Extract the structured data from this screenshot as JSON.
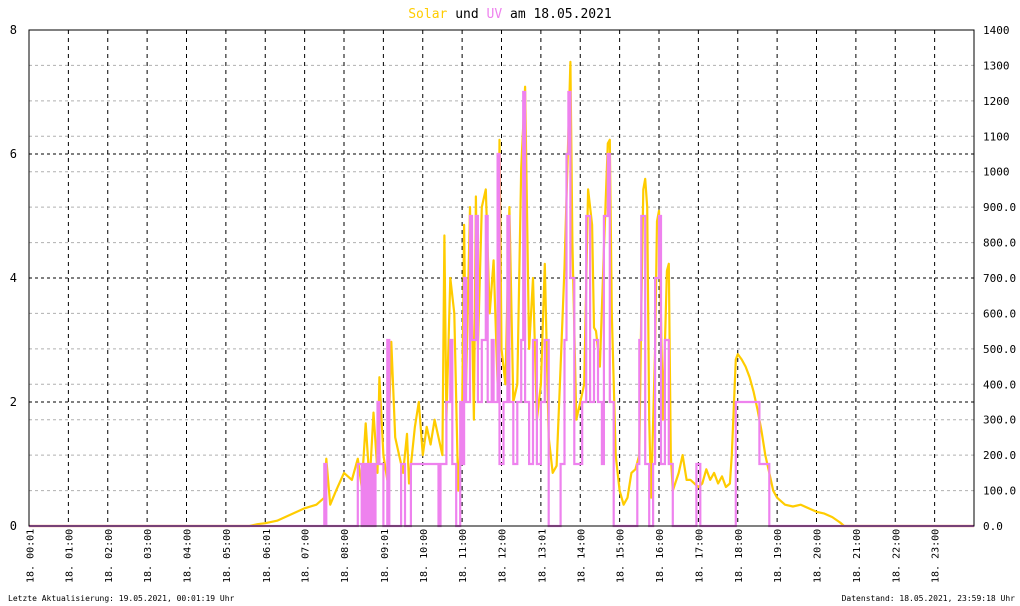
{
  "title": {
    "word1": "Solar",
    "word2": " und ",
    "word3": "UV",
    "word4": " am 18.05.2021",
    "color_solar": "#ffcc00",
    "color_uv": "#ee82ee"
  },
  "footer": {
    "left": "Letzte Aktualisierung: 19.05.2021, 00:01:19 Uhr",
    "right": "Datenstand: 18.05.2021, 23:59:18 Uhr"
  },
  "chart_data": {
    "type": "line",
    "grid": true,
    "x_range_hours": [
      0,
      24
    ],
    "x_ticks": [
      {
        "h": 0.017,
        "label": "18. 00:01"
      },
      {
        "h": 1,
        "label": "18. 01:00"
      },
      {
        "h": 2,
        "label": "18. 02:00"
      },
      {
        "h": 3,
        "label": "18. 03:00"
      },
      {
        "h": 4,
        "label": "18. 04:00"
      },
      {
        "h": 5,
        "label": "18. 05:00"
      },
      {
        "h": 6.017,
        "label": "18. 06:01"
      },
      {
        "h": 7,
        "label": "18. 07:00"
      },
      {
        "h": 8,
        "label": "18. 08:00"
      },
      {
        "h": 9.017,
        "label": "18. 09:01"
      },
      {
        "h": 10,
        "label": "18. 10:00"
      },
      {
        "h": 11,
        "label": "18. 11:00"
      },
      {
        "h": 12,
        "label": "18. 12:00"
      },
      {
        "h": 13.017,
        "label": "18. 13:01"
      },
      {
        "h": 14,
        "label": "18. 14:00"
      },
      {
        "h": 15,
        "label": "18. 15:00"
      },
      {
        "h": 16,
        "label": "18. 16:00"
      },
      {
        "h": 17,
        "label": "18. 17:00"
      },
      {
        "h": 18,
        "label": "18. 18:00"
      },
      {
        "h": 19,
        "label": "18. 19:00"
      },
      {
        "h": 20,
        "label": "18. 20:00"
      },
      {
        "h": 21,
        "label": "18. 21:00"
      },
      {
        "h": 22,
        "label": "18. 22:00"
      },
      {
        "h": 23,
        "label": "18. 23:00"
      }
    ],
    "y_left": {
      "range": [
        0,
        8
      ],
      "ticks": [
        "0",
        "2",
        "4",
        "6",
        "8"
      ]
    },
    "y_right": {
      "range": [
        0,
        1400
      ],
      "ticks": [
        "0.0",
        "100.0",
        "200.0",
        "300.0",
        "400.0",
        "500.0",
        "600.0",
        "700.0",
        "800.0",
        "900.0",
        "1000",
        "1100",
        "1200",
        "1300",
        "1400"
      ]
    },
    "series": [
      {
        "key": "solar",
        "color": "#ffcc00",
        "axis": "right",
        "points": [
          [
            0,
            0
          ],
          [
            5.6,
            0
          ],
          [
            5.8,
            5
          ],
          [
            6.0,
            8
          ],
          [
            6.3,
            15
          ],
          [
            6.6,
            30
          ],
          [
            7.0,
            50
          ],
          [
            7.3,
            60
          ],
          [
            7.5,
            80
          ],
          [
            7.55,
            190
          ],
          [
            7.65,
            60
          ],
          [
            7.8,
            100
          ],
          [
            8.0,
            150
          ],
          [
            8.2,
            130
          ],
          [
            8.35,
            190
          ],
          [
            8.45,
            110
          ],
          [
            8.55,
            290
          ],
          [
            8.65,
            120
          ],
          [
            8.75,
            320
          ],
          [
            8.85,
            150
          ],
          [
            8.9,
            420
          ],
          [
            9.0,
            200
          ],
          [
            9.1,
            130
          ],
          [
            9.2,
            520
          ],
          [
            9.3,
            250
          ],
          [
            9.4,
            200
          ],
          [
            9.5,
            150
          ],
          [
            9.6,
            260
          ],
          [
            9.65,
            120
          ],
          [
            9.8,
            280
          ],
          [
            9.9,
            350
          ],
          [
            10.0,
            200
          ],
          [
            10.1,
            280
          ],
          [
            10.2,
            230
          ],
          [
            10.3,
            300
          ],
          [
            10.4,
            250
          ],
          [
            10.5,
            200
          ],
          [
            10.55,
            820
          ],
          [
            10.6,
            300
          ],
          [
            10.7,
            700
          ],
          [
            10.8,
            600
          ],
          [
            10.9,
            100
          ],
          [
            11.0,
            300
          ],
          [
            11.05,
            850
          ],
          [
            11.1,
            400
          ],
          [
            11.2,
            900
          ],
          [
            11.3,
            300
          ],
          [
            11.35,
            930
          ],
          [
            11.4,
            500
          ],
          [
            11.5,
            900
          ],
          [
            11.6,
            950
          ],
          [
            11.7,
            600
          ],
          [
            11.8,
            750
          ],
          [
            11.9,
            400
          ],
          [
            11.95,
            1090
          ],
          [
            12.0,
            500
          ],
          [
            12.1,
            400
          ],
          [
            12.2,
            900
          ],
          [
            12.3,
            350
          ],
          [
            12.4,
            400
          ],
          [
            12.5,
            1010
          ],
          [
            12.6,
            1240
          ],
          [
            12.7,
            500
          ],
          [
            12.8,
            700
          ],
          [
            12.9,
            300
          ],
          [
            13.0,
            400
          ],
          [
            13.1,
            740
          ],
          [
            13.2,
            250
          ],
          [
            13.3,
            150
          ],
          [
            13.4,
            170
          ],
          [
            13.5,
            450
          ],
          [
            13.6,
            730
          ],
          [
            13.7,
            1110
          ],
          [
            13.75,
            1310
          ],
          [
            13.8,
            800
          ],
          [
            13.9,
            300
          ],
          [
            14.0,
            350
          ],
          [
            14.1,
            400
          ],
          [
            14.2,
            950
          ],
          [
            14.3,
            850
          ],
          [
            14.35,
            560
          ],
          [
            14.4,
            550
          ],
          [
            14.5,
            450
          ],
          [
            14.6,
            780
          ],
          [
            14.7,
            1080
          ],
          [
            14.75,
            1090
          ],
          [
            14.8,
            600
          ],
          [
            14.9,
            200
          ],
          [
            15.0,
            100
          ],
          [
            15.1,
            60
          ],
          [
            15.2,
            80
          ],
          [
            15.3,
            150
          ],
          [
            15.4,
            160
          ],
          [
            15.5,
            200
          ],
          [
            15.55,
            610
          ],
          [
            15.6,
            950
          ],
          [
            15.65,
            980
          ],
          [
            15.7,
            900
          ],
          [
            15.75,
            300
          ],
          [
            15.8,
            80
          ],
          [
            15.9,
            500
          ],
          [
            15.95,
            860
          ],
          [
            16.0,
            890
          ],
          [
            16.1,
            300
          ],
          [
            16.2,
            720
          ],
          [
            16.25,
            740
          ],
          [
            16.3,
            200
          ],
          [
            16.35,
            100
          ],
          [
            16.5,
            150
          ],
          [
            16.6,
            200
          ],
          [
            16.7,
            130
          ],
          [
            16.8,
            130
          ],
          [
            16.9,
            120
          ],
          [
            17.0,
            110
          ],
          [
            17.1,
            120
          ],
          [
            17.2,
            160
          ],
          [
            17.3,
            130
          ],
          [
            17.4,
            150
          ],
          [
            17.5,
            120
          ],
          [
            17.6,
            140
          ],
          [
            17.7,
            110
          ],
          [
            17.8,
            120
          ],
          [
            17.85,
            200
          ],
          [
            17.95,
            470
          ],
          [
            18.0,
            485
          ],
          [
            18.1,
            470
          ],
          [
            18.2,
            450
          ],
          [
            18.3,
            420
          ],
          [
            18.4,
            380
          ],
          [
            18.5,
            330
          ],
          [
            18.6,
            270
          ],
          [
            18.7,
            200
          ],
          [
            18.8,
            150
          ],
          [
            18.9,
            100
          ],
          [
            19.0,
            80
          ],
          [
            19.2,
            60
          ],
          [
            19.4,
            55
          ],
          [
            19.6,
            60
          ],
          [
            19.8,
            50
          ],
          [
            20.0,
            40
          ],
          [
            20.2,
            35
          ],
          [
            20.4,
            25
          ],
          [
            20.6,
            10
          ],
          [
            20.7,
            0
          ],
          [
            24,
            0
          ]
        ]
      },
      {
        "key": "uv",
        "color": "#ee82ee",
        "axis": "left",
        "steps": [
          [
            0,
            0
          ],
          [
            7.45,
            0
          ],
          [
            7.5,
            1
          ],
          [
            7.55,
            0
          ],
          [
            8.3,
            0
          ],
          [
            8.35,
            1
          ],
          [
            8.45,
            0
          ],
          [
            8.5,
            1
          ],
          [
            8.55,
            0
          ],
          [
            8.6,
            1
          ],
          [
            8.65,
            0
          ],
          [
            8.7,
            1
          ],
          [
            8.75,
            0
          ],
          [
            8.8,
            1
          ],
          [
            8.85,
            2
          ],
          [
            8.9,
            1
          ],
          [
            9.0,
            0
          ],
          [
            9.1,
            3
          ],
          [
            9.15,
            0
          ],
          [
            9.4,
            0
          ],
          [
            9.45,
            1
          ],
          [
            9.55,
            0
          ],
          [
            9.7,
            1
          ],
          [
            10.4,
            0
          ],
          [
            10.45,
            1
          ],
          [
            10.5,
            1
          ],
          [
            10.6,
            2
          ],
          [
            10.7,
            3
          ],
          [
            10.75,
            1
          ],
          [
            10.85,
            0
          ],
          [
            10.95,
            2
          ],
          [
            11.0,
            1
          ],
          [
            11.05,
            4
          ],
          [
            11.1,
            2
          ],
          [
            11.2,
            5
          ],
          [
            11.25,
            3
          ],
          [
            11.35,
            5
          ],
          [
            11.4,
            2
          ],
          [
            11.5,
            3
          ],
          [
            11.6,
            5
          ],
          [
            11.65,
            2
          ],
          [
            11.75,
            3
          ],
          [
            11.8,
            2
          ],
          [
            11.9,
            6
          ],
          [
            11.95,
            1
          ],
          [
            12.05,
            2
          ],
          [
            12.15,
            5
          ],
          [
            12.2,
            2
          ],
          [
            12.3,
            1
          ],
          [
            12.4,
            2
          ],
          [
            12.5,
            3
          ],
          [
            12.55,
            7
          ],
          [
            12.6,
            2
          ],
          [
            12.7,
            1
          ],
          [
            12.8,
            3
          ],
          [
            12.9,
            1
          ],
          [
            13.0,
            2
          ],
          [
            13.1,
            3
          ],
          [
            13.2,
            0
          ],
          [
            13.4,
            0
          ],
          [
            13.5,
            1
          ],
          [
            13.6,
            3
          ],
          [
            13.65,
            6
          ],
          [
            13.7,
            7
          ],
          [
            13.75,
            4
          ],
          [
            13.85,
            1
          ],
          [
            13.95,
            1
          ],
          [
            14.05,
            2
          ],
          [
            14.15,
            5
          ],
          [
            14.25,
            2
          ],
          [
            14.35,
            3
          ],
          [
            14.45,
            2
          ],
          [
            14.55,
            1
          ],
          [
            14.6,
            5
          ],
          [
            14.7,
            6
          ],
          [
            14.75,
            2
          ],
          [
            14.85,
            0
          ],
          [
            15.4,
            0
          ],
          [
            15.45,
            1
          ],
          [
            15.5,
            3
          ],
          [
            15.55,
            5
          ],
          [
            15.65,
            1
          ],
          [
            15.75,
            0
          ],
          [
            15.85,
            1
          ],
          [
            15.9,
            4
          ],
          [
            16.0,
            5
          ],
          [
            16.05,
            1
          ],
          [
            16.15,
            3
          ],
          [
            16.25,
            1
          ],
          [
            16.35,
            0
          ],
          [
            16.9,
            0
          ],
          [
            16.95,
            1
          ],
          [
            17.05,
            0
          ],
          [
            17.9,
            0
          ],
          [
            17.95,
            2
          ],
          [
            18.5,
            2
          ],
          [
            18.55,
            1
          ],
          [
            18.75,
            1
          ],
          [
            18.8,
            0
          ],
          [
            24,
            0
          ]
        ]
      }
    ]
  }
}
